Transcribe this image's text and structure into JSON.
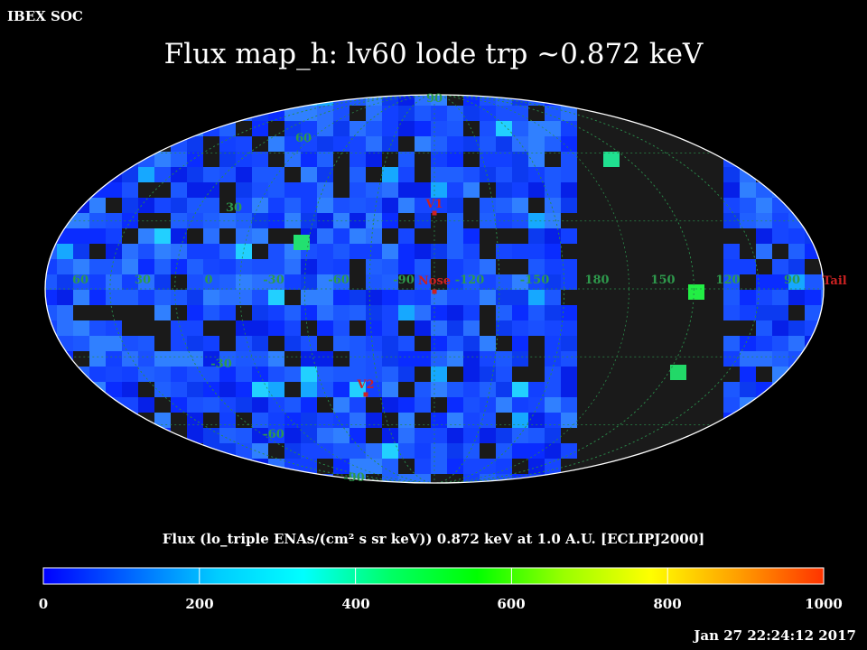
{
  "header": {
    "organization": "IBEX SOC",
    "title": "Flux   map_h: lv60 lode trp ~0.872 keV"
  },
  "map": {
    "projection": "Aitoff / Hammer all-sky",
    "graticule_color": "#2a8a4a",
    "label_color": "#2e9a4c",
    "marker_color": "#cc2222",
    "no_data_color": "#1a1a1a",
    "longitude_labels": [
      "60",
      "30",
      "0",
      "-30",
      "-60",
      "-90",
      "-120",
      "-150",
      "180",
      "150",
      "120",
      "90"
    ],
    "latitude_labels": {
      "top": "90",
      "n60": "60",
      "n30": "30",
      "s30": "-30",
      "s60": "-60",
      "bottom": "-90"
    },
    "markers": [
      {
        "label": "V1"
      },
      {
        "label": "Nose"
      },
      {
        "label": "V2"
      },
      {
        "label": "Tail"
      }
    ]
  },
  "colorbar": {
    "label": "Flux (lo_triple ENAs/(cm² s sr keV))  0.872 keV at 1.0 A.U. [ECLIPJ2000]",
    "min": 0,
    "max": 1000,
    "ticks": [
      "0",
      "200",
      "400",
      "600",
      "800",
      "1000"
    ],
    "colors": [
      "#0000ff",
      "#0066ff",
      "#00ccff",
      "#00ffff",
      "#00ff66",
      "#00ff00",
      "#99ff00",
      "#ffff00",
      "#ffa000",
      "#ff3300"
    ]
  },
  "footer": {
    "timestamp": "Jan 27 22:24:12 2017"
  }
}
